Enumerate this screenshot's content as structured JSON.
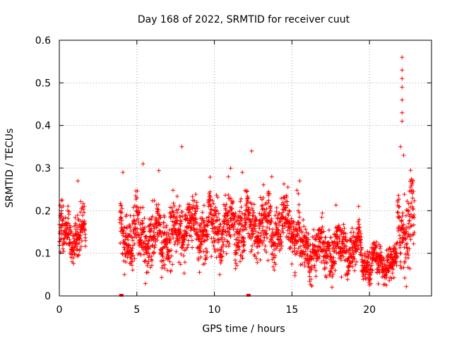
{
  "chart_data": {
    "type": "scatter",
    "title": "Day 168 of 2022, SRMTID for receiver cuut",
    "xlabel": "GPS time / hours",
    "ylabel": "SRMTID / TECUs",
    "xlim": [
      0,
      24
    ],
    "ylim": [
      0,
      0.6
    ],
    "xticks": [
      0,
      5,
      10,
      15,
      20
    ],
    "yticks": [
      0,
      0.1,
      0.2,
      0.3,
      0.4,
      0.5,
      0.6
    ],
    "xtick_labels": [
      "0",
      "5",
      "10",
      "15",
      "20"
    ],
    "ytick_labels": [
      "0",
      "0.1",
      "0.2",
      "0.3",
      "0.4",
      "0.5",
      "0.6"
    ],
    "grid": true,
    "marker": "+",
    "color": "#ff0000",
    "series": [
      {
        "name": "SRMTID",
        "segments": [
          {
            "x_start": 0.0,
            "x_end": 1.7,
            "mean": 0.14,
            "spread": 0.035
          },
          {
            "x_start": 3.9,
            "x_end": 7.5,
            "mean": 0.14,
            "spread": 0.045
          },
          {
            "x_start": 7.5,
            "x_end": 15.5,
            "mean": 0.16,
            "spread": 0.045
          },
          {
            "x_start": 15.5,
            "x_end": 19.5,
            "mean": 0.11,
            "spread": 0.035
          },
          {
            "x_start": 19.5,
            "x_end": 21.8,
            "mean": 0.075,
            "spread": 0.025
          },
          {
            "x_start": 21.8,
            "x_end": 22.9,
            "mean": 0.17,
            "spread": 0.06
          }
        ],
        "peaks": [
          {
            "x": 1.2,
            "y": 0.27
          },
          {
            "x": 4.1,
            "y": 0.29
          },
          {
            "x": 5.4,
            "y": 0.31
          },
          {
            "x": 7.9,
            "y": 0.35
          },
          {
            "x": 10.9,
            "y": 0.28
          },
          {
            "x": 11.8,
            "y": 0.29
          },
          {
            "x": 12.4,
            "y": 0.34
          },
          {
            "x": 13.7,
            "y": 0.28
          },
          {
            "x": 15.5,
            "y": 0.27
          },
          {
            "x": 19.3,
            "y": 0.21
          },
          {
            "x": 22.1,
            "y": 0.41
          },
          {
            "x": 22.1,
            "y": 0.43
          },
          {
            "x": 22.1,
            "y": 0.46
          },
          {
            "x": 22.1,
            "y": 0.49
          },
          {
            "x": 22.1,
            "y": 0.51
          },
          {
            "x": 22.1,
            "y": 0.53
          },
          {
            "x": 22.1,
            "y": 0.56
          },
          {
            "x": 22.0,
            "y": 0.35
          },
          {
            "x": 22.2,
            "y": 0.33
          }
        ],
        "zero_markers": [
          {
            "x": 4.0,
            "y": 0.0
          },
          {
            "x": 12.2,
            "y": 0.0
          }
        ]
      }
    ]
  }
}
